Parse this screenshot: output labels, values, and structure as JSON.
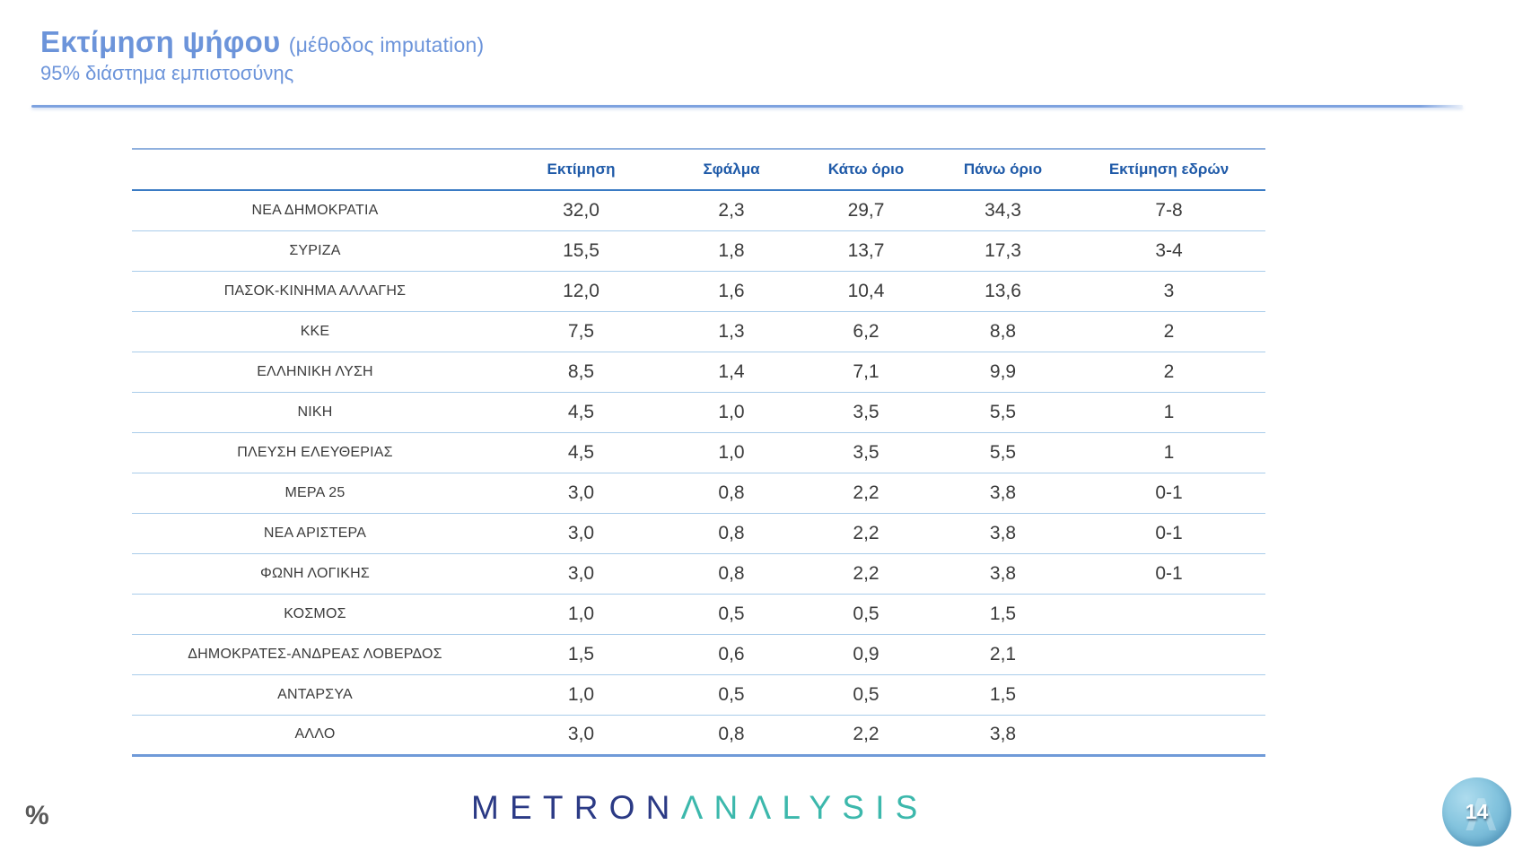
{
  "slide": {
    "title": "Εκτίμηση ψήφου",
    "title_suffix": "(μέθοδος imputation)",
    "subtitle": "95% διάστημα εμπιστοσύνης",
    "percent_note": "%",
    "page_number": "14"
  },
  "logo": {
    "part1": "METRON",
    "part2": "ΛNΛLYSIS",
    "lambda_mark": "Λ"
  },
  "colors": {
    "title_blue": "#6C94DA",
    "header_blue": "#1F5AA8",
    "rule_blue": "#7DA2DF",
    "top_border": "#8FB0DE",
    "strong_border": "#3A7BC4",
    "separator_blue": "#A9CCEA",
    "bottom_border": "#6F9AD8",
    "text_dark": "#3B3B3B",
    "logo_navy": "#2B3A85",
    "logo_teal": "#3CB8AC",
    "badge_blue": "#74B8D8"
  },
  "table": {
    "columns": [
      "Εκτίμηση",
      "Σφάλμα",
      "Κάτω όριο",
      "Πάνω όριο",
      "Εκτίμηση εδρών"
    ],
    "rows": [
      {
        "party": "ΝΕΑ  ΔΗΜΟΚΡΑΤΙΑ",
        "values": [
          "32,0",
          "2,3",
          "29,7",
          "34,3",
          "7-8"
        ]
      },
      {
        "party": "ΣΥΡΙΖΑ",
        "values": [
          "15,5",
          "1,8",
          "13,7",
          "17,3",
          "3-4"
        ]
      },
      {
        "party": "ΠΑΣΟΚ-ΚΙΝΗΜΑ  ΑΛΛΑΓΗΣ",
        "values": [
          "12,0",
          "1,6",
          "10,4",
          "13,6",
          "3"
        ]
      },
      {
        "party": "ΚΚΕ",
        "values": [
          "7,5",
          "1,3",
          "6,2",
          "8,8",
          "2"
        ]
      },
      {
        "party": "ΕΛΛΗΝΙΚΗ ΛΥΣΗ",
        "values": [
          "8,5",
          "1,4",
          "7,1",
          "9,9",
          "2"
        ]
      },
      {
        "party": "ΝΙΚΗ",
        "values": [
          "4,5",
          "1,0",
          "3,5",
          "5,5",
          "1"
        ]
      },
      {
        "party": "ΠΛΕΥΣΗ ΕΛΕΥΘΕΡΙΑΣ",
        "values": [
          "4,5",
          "1,0",
          "3,5",
          "5,5",
          "1"
        ]
      },
      {
        "party": "ΜΕΡΑ 25",
        "values": [
          "3,0",
          "0,8",
          "2,2",
          "3,8",
          "0-1"
        ]
      },
      {
        "party": "ΝΕΑ ΑΡΙΣΤΕΡΑ",
        "values": [
          "3,0",
          "0,8",
          "2,2",
          "3,8",
          "0-1"
        ]
      },
      {
        "party": "ΦΩΝΗ ΛΟΓΙΚΗΣ",
        "values": [
          "3,0",
          "0,8",
          "2,2",
          "3,8",
          "0-1"
        ]
      },
      {
        "party": "ΚΟΣΜΟΣ",
        "values": [
          "1,0",
          "0,5",
          "0,5",
          "1,5",
          ""
        ]
      },
      {
        "party": "ΔΗΜΟΚΡΑΤΕΣ-ΑΝΔΡΕΑΣ ΛΟΒΕΡΔΟΣ",
        "values": [
          "1,5",
          "0,6",
          "0,9",
          "2,1",
          ""
        ]
      },
      {
        "party": "ΑΝΤΑΡΣΥΑ",
        "values": [
          "1,0",
          "0,5",
          "0,5",
          "1,5",
          ""
        ]
      },
      {
        "party": "ΑΛΛΟ",
        "values": [
          "3,0",
          "0,8",
          "2,2",
          "3,8",
          ""
        ]
      }
    ]
  }
}
